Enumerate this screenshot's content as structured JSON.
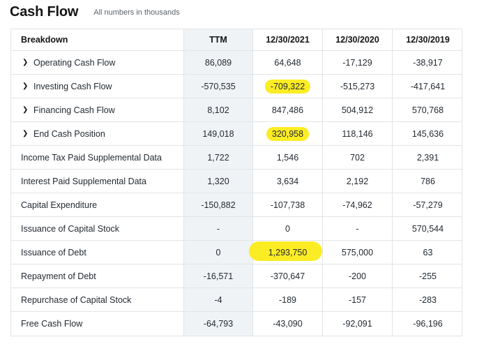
{
  "header": {
    "title": "Cash Flow",
    "subtitle": "All numbers in thousands"
  },
  "table": {
    "columns": [
      "Breakdown",
      "TTM",
      "12/30/2021",
      "12/30/2020",
      "12/30/2019"
    ],
    "rows": [
      {
        "label": "Operating Cash Flow",
        "expandable": true,
        "values": [
          "86,089",
          "64,648",
          "-17,129",
          "-38,917"
        ]
      },
      {
        "label": "Investing Cash Flow",
        "expandable": true,
        "values": [
          "-570,535",
          "-709,322",
          "-515,273",
          "-417,641"
        ]
      },
      {
        "label": "Financing Cash Flow",
        "expandable": true,
        "values": [
          "8,102",
          "847,486",
          "504,912",
          "570,768"
        ]
      },
      {
        "label": "End Cash Position",
        "expandable": true,
        "values": [
          "149,018",
          "320,958",
          "118,146",
          "145,636"
        ]
      },
      {
        "label": "Income Tax Paid Supplemental Data",
        "expandable": false,
        "values": [
          "1,722",
          "1,546",
          "702",
          "2,391"
        ]
      },
      {
        "label": "Interest Paid Supplemental Data",
        "expandable": false,
        "values": [
          "1,320",
          "3,634",
          "2,192",
          "786"
        ]
      },
      {
        "label": "Capital Expenditure",
        "expandable": false,
        "values": [
          "-150,882",
          "-107,738",
          "-74,962",
          "-57,279"
        ]
      },
      {
        "label": "Issuance of Capital Stock",
        "expandable": false,
        "values": [
          "-",
          "0",
          "-",
          "570,544"
        ]
      },
      {
        "label": "Issuance of Debt",
        "expandable": false,
        "values": [
          "0",
          "1,293,750",
          "575,000",
          "63"
        ]
      },
      {
        "label": "Repayment of Debt",
        "expandable": false,
        "values": [
          "-16,571",
          "-370,647",
          "-200",
          "-255"
        ]
      },
      {
        "label": "Repurchase of Capital Stock",
        "expandable": false,
        "values": [
          "-4",
          "-189",
          "-157",
          "-283"
        ]
      },
      {
        "label": "Free Cash Flow",
        "expandable": false,
        "values": [
          "-64,793",
          "-43,090",
          "-92,091",
          "-96,196"
        ]
      }
    ],
    "highlight_color": "#fcec24",
    "highlights": [
      {
        "row": 1,
        "col": 1
      },
      {
        "row": 3,
        "col": 1
      },
      {
        "row": 8,
        "col": 1
      }
    ],
    "chevron_icon": "chevron-right-icon"
  }
}
